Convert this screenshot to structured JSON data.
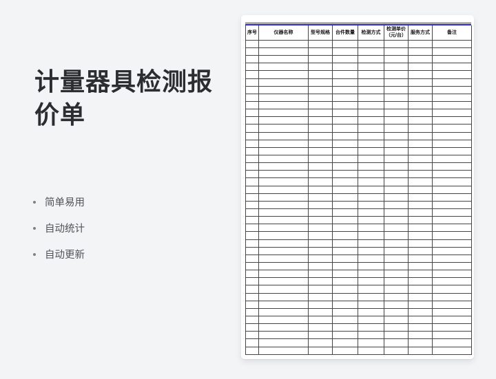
{
  "page": {
    "background_color": "#f3f4f6"
  },
  "intro": {
    "title": "计量器具检测报价单",
    "features": [
      "简单易用",
      "自动统计",
      "自动更新"
    ]
  },
  "preview": {
    "accent_color": "#2323cd",
    "table": {
      "grid_color": "#454545",
      "columns": [
        {
          "key": "serial-number",
          "label": "序号"
        },
        {
          "key": "instrument-name",
          "label": "仪器名称"
        },
        {
          "key": "model-spec",
          "label": "型号规格"
        },
        {
          "key": "unit-quantity",
          "label": "台件数量"
        },
        {
          "key": "testing-method",
          "label": "检测方式"
        },
        {
          "key": "testing-unit-price",
          "label": "检测单价（元/台）"
        },
        {
          "key": "service-method",
          "label": "服务方式"
        },
        {
          "key": "remarks",
          "label": "备注"
        }
      ],
      "empty_row_count": 41,
      "cell_values": []
    }
  }
}
